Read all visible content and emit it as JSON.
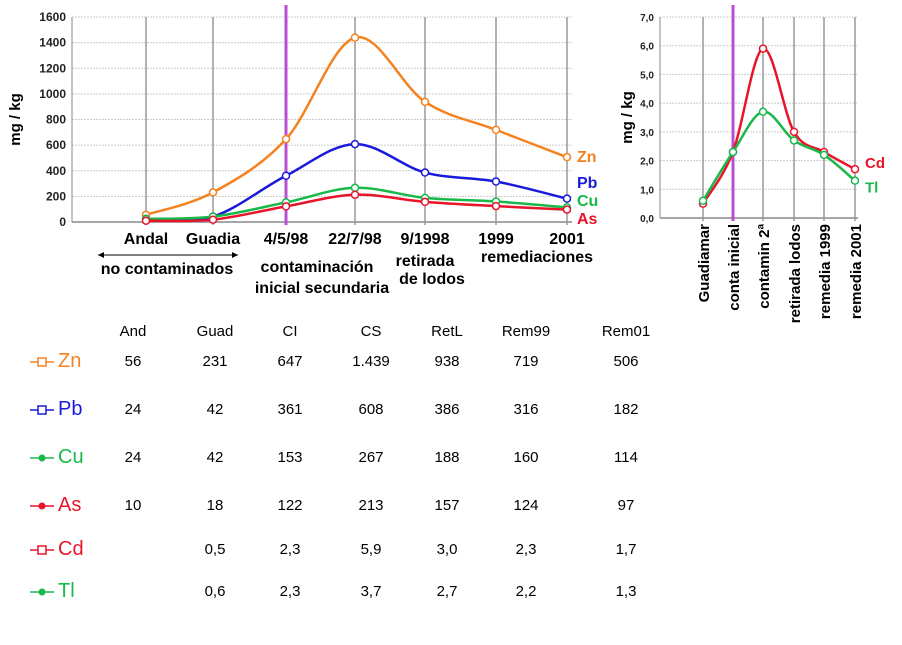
{
  "chart_data": [
    {
      "type": "line",
      "title": "",
      "ylabel": "mg / kg",
      "ylim": [
        0,
        1600
      ],
      "yticks": [
        0,
        200,
        400,
        600,
        800,
        1000,
        1200,
        1400,
        1600
      ],
      "categories": [
        "Andal",
        "Guadia",
        "4/5/98",
        "22/7/98",
        "9/1998",
        "1999",
        "2001"
      ],
      "sublabels": [
        "retirada",
        "de lodos",
        "remediaciones",
        "no contaminados",
        "contaminación",
        "inicial secundaria"
      ],
      "marker_line_at": "4/5/98",
      "grid": true,
      "series": [
        {
          "name": "Zn",
          "color": "#f58220",
          "values": [
            56,
            231,
            647,
            1439,
            938,
            719,
            506
          ]
        },
        {
          "name": "Pb",
          "color": "#1a1adc",
          "values": [
            24,
            42,
            361,
            608,
            386,
            316,
            182
          ]
        },
        {
          "name": "Cu",
          "color": "#19b84a",
          "values": [
            24,
            42,
            153,
            267,
            188,
            160,
            114
          ]
        },
        {
          "name": "As",
          "color": "#e8142a",
          "values": [
            10,
            18,
            122,
            213,
            157,
            124,
            97
          ]
        }
      ]
    },
    {
      "type": "line",
      "title": "",
      "ylabel": "mg / kg",
      "ylim": [
        0,
        7
      ],
      "yticks": [
        "0,0",
        "1,0",
        "2,0",
        "3,0",
        "4,0",
        "5,0",
        "6,0",
        "7,0"
      ],
      "categories": [
        "Guadiamar",
        "conta inicial",
        "contamin 2ª",
        "retirada lodos",
        "remedia 1999",
        "remedia 2001"
      ],
      "marker_line_at": "conta inicial",
      "grid": true,
      "series": [
        {
          "name": "Cd",
          "color": "#e8142a",
          "values": [
            0.5,
            2.3,
            5.9,
            3.0,
            2.3,
            1.7
          ]
        },
        {
          "name": "Tl",
          "color": "#19b84a",
          "values": [
            0.6,
            2.3,
            3.7,
            2.7,
            2.2,
            1.3
          ]
        }
      ]
    }
  ],
  "table": {
    "headers": [
      "And",
      "Guad",
      "CI",
      "CS",
      "RetL",
      "Rem99",
      "Rem01"
    ],
    "rows": [
      {
        "label": "Zn",
        "color": "#f58220",
        "cells": [
          "56",
          "231",
          "647",
          "1.439",
          "938",
          "719",
          "506"
        ]
      },
      {
        "label": "Pb",
        "color": "#1a1adc",
        "cells": [
          "24",
          "42",
          "361",
          "608",
          "386",
          "316",
          "182"
        ]
      },
      {
        "label": "Cu",
        "color": "#19b84a",
        "cells": [
          "24",
          "42",
          "153",
          "267",
          "188",
          "160",
          "114"
        ]
      },
      {
        "label": "As",
        "color": "#e8142a",
        "cells": [
          "10",
          "18",
          "122",
          "213",
          "157",
          "124",
          "97"
        ]
      },
      {
        "label": "Cd",
        "color": "#e8142a",
        "cells": [
          "",
          "0,5",
          "2,3",
          "5,9",
          "3,0",
          "2,3",
          "1,7"
        ]
      },
      {
        "label": "Tl",
        "color": "#19b84a",
        "cells": [
          "",
          "0,6",
          "2,3",
          "3,7",
          "2,7",
          "2,2",
          "1,3"
        ]
      }
    ]
  }
}
